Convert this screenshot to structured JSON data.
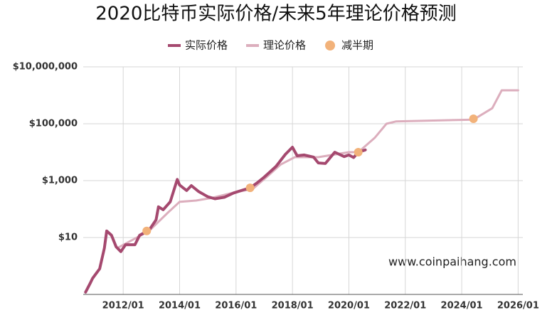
{
  "chart_data": {
    "type": "line",
    "title": "2020比特币实际价格/未来5年理论价格预测",
    "annotation": "www.coinpaihang.com",
    "log_scale": true,
    "grid": true,
    "legend": "top",
    "xlim": [
      "2010-08",
      "2026-03"
    ],
    "xticks": [
      {
        "value": "2012-01",
        "label": "2012/01"
      },
      {
        "value": "2014-01",
        "label": "2014/01"
      },
      {
        "value": "2016-01",
        "label": "2016/01"
      },
      {
        "value": "2018-01",
        "label": "2018/01"
      },
      {
        "value": "2020-01",
        "label": "2020/01"
      },
      {
        "value": "2022-01",
        "label": "2022/01"
      },
      {
        "value": "2024-01",
        "label": "2024/01"
      },
      {
        "value": "2026-01",
        "label": "2026/01"
      }
    ],
    "ylim": [
      0.1,
      10000000
    ],
    "yticks": [
      {
        "value": 10,
        "label": "$10"
      },
      {
        "value": 1000,
        "label": "$1,000"
      },
      {
        "value": 100000,
        "label": "$100,000"
      },
      {
        "value": 10000000,
        "label": "$10,000,000"
      }
    ],
    "series": [
      {
        "name": "实际价格",
        "color": "#a5496f",
        "mode": "line",
        "width": 4,
        "x": [
          "2010-09",
          "2010-11",
          "2010-12",
          "2011-03",
          "2011-05",
          "2011-06",
          "2011-08",
          "2011-10",
          "2011-12",
          "2012-02",
          "2012-06",
          "2012-08",
          "2012-12",
          "2013-03",
          "2013-04",
          "2013-06",
          "2013-09",
          "2013-12",
          "2014-01",
          "2014-04",
          "2014-06",
          "2014-09",
          "2015-01",
          "2015-04",
          "2015-08",
          "2015-12",
          "2016-04",
          "2016-07",
          "2016-10",
          "2017-01",
          "2017-06",
          "2017-10",
          "2018-01",
          "2018-03",
          "2018-06",
          "2018-10",
          "2018-12",
          "2019-03",
          "2019-07",
          "2019-11",
          "2020-01",
          "2020-03",
          "2020-05",
          "2020-08"
        ],
        "values": [
          0.12,
          0.25,
          0.37,
          0.8,
          4.2,
          17,
          12,
          4.7,
          3.2,
          5.6,
          5.6,
          12,
          18,
          42,
          120,
          95,
          180,
          1100,
          700,
          450,
          670,
          420,
          270,
          230,
          260,
          370,
          470,
          560,
          840,
          1330,
          3160,
          8400,
          15000,
          7500,
          8000,
          6700,
          4200,
          4000,
          10000,
          7000,
          8000,
          6500,
          10000,
          12000
        ]
      },
      {
        "name": "理论价格",
        "color": "#dcaebd",
        "mode": "line",
        "width": 3,
        "x": [
          "2011-11",
          "2012-12",
          "2013-08",
          "2014-01",
          "2014-08",
          "2015-03",
          "2016-01",
          "2016-08",
          "2017-02",
          "2017-08",
          "2018-02",
          "2018-12",
          "2020-01",
          "2020-05",
          "2020-12",
          "2021-05",
          "2021-09",
          "2024-06",
          "2025-02",
          "2025-06",
          "2026-01"
        ],
        "values": [
          4.5,
          17,
          75,
          180,
          200,
          250,
          400,
          500,
          1330,
          3700,
          6700,
          6700,
          10000,
          10000,
          32000,
          100000,
          120000,
          140000,
          350000,
          1500000,
          1500000
        ]
      },
      {
        "name": "减半期",
        "color": "#f2b27a",
        "mode": "markers",
        "x": [
          "2012-11",
          "2016-07",
          "2020-05",
          "2024-06"
        ],
        "values": [
          17,
          560,
          10000,
          150000
        ]
      }
    ]
  }
}
